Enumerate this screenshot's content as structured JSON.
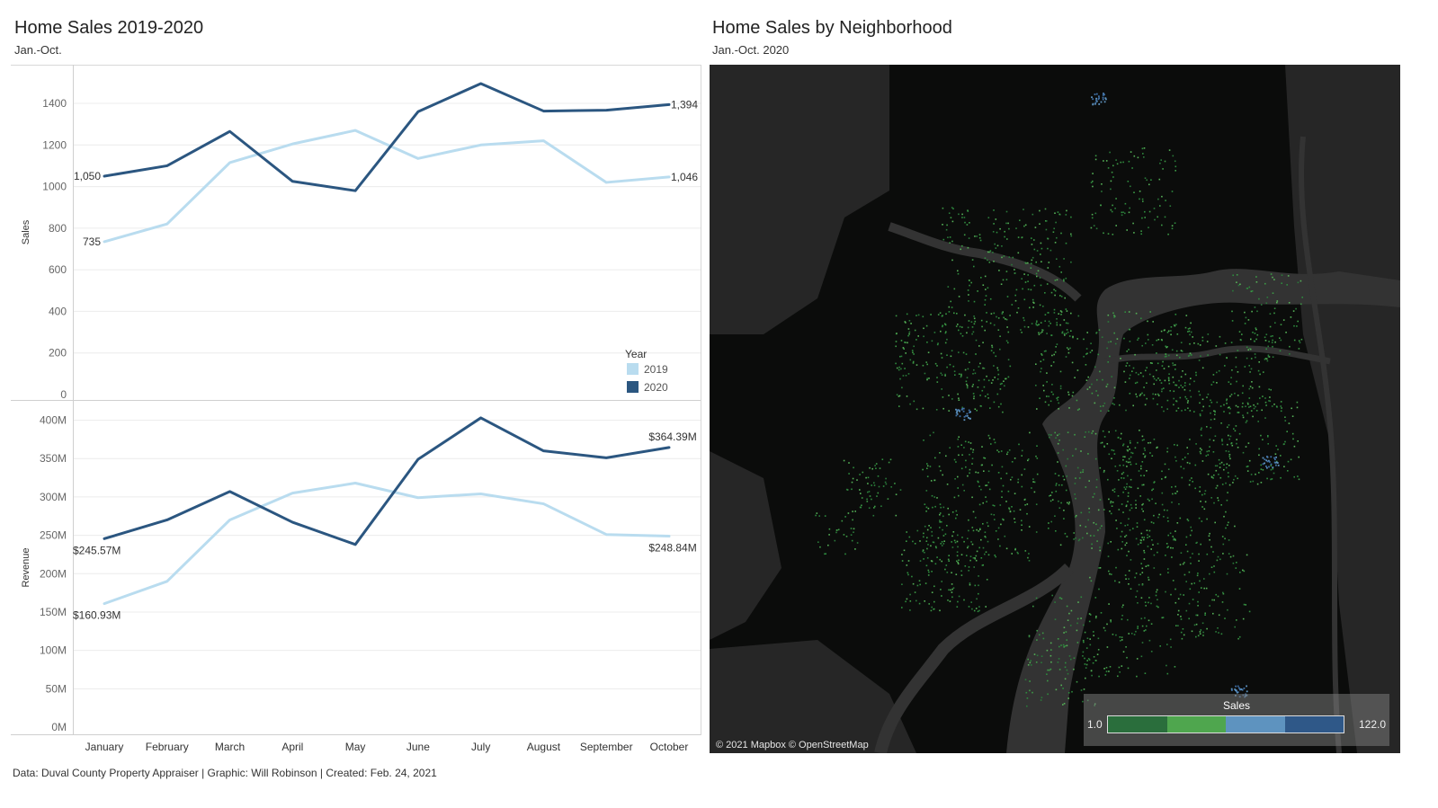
{
  "left": {
    "title": "Home Sales 2019-2020",
    "subtitle": "Jan.-Oct."
  },
  "right": {
    "title": "Home Sales by Neighborhood",
    "subtitle": "Jan.-Oct. 2020"
  },
  "footer": "Data: Duval County Property Appraiser  |  Graphic: Will Robinson  |  Created: Feb. 24, 2021",
  "colors": {
    "y2019": "#b9dcef",
    "y2020": "#2b5680",
    "map_bg": "#0b0c0b",
    "map_land": "#262626",
    "map_water": "#333333"
  },
  "chart_data": [
    {
      "type": "line",
      "ylabel": "Sales",
      "categories": [
        "January",
        "February",
        "March",
        "April",
        "May",
        "June",
        "July",
        "August",
        "September",
        "October"
      ],
      "ylim": [
        0,
        1600
      ],
      "yticks": [
        0,
        200,
        400,
        600,
        800,
        1000,
        1200,
        1400
      ],
      "ytick_labels": [
        "0",
        "200",
        "400",
        "600",
        "800",
        "1000",
        "1200",
        "1400"
      ],
      "grid": true,
      "legend": {
        "title": "Year",
        "placement": "bottom-right",
        "entries": [
          {
            "label": "2019",
            "color": "#b9dcef"
          },
          {
            "label": "2020",
            "color": "#2b5680"
          }
        ]
      },
      "series": [
        {
          "name": "2019",
          "color": "#b9dcef",
          "values": [
            735,
            820,
            1115,
            1205,
            1270,
            1135,
            1200,
            1220,
            1020,
            1046
          ]
        },
        {
          "name": "2020",
          "color": "#2b5680",
          "values": [
            1050,
            1100,
            1265,
            1025,
            980,
            1360,
            1495,
            1363,
            1367,
            1394
          ]
        }
      ],
      "data_labels": [
        {
          "series": "2020",
          "index": 0,
          "text": "1,050",
          "side": "left"
        },
        {
          "series": "2019",
          "index": 0,
          "text": "735",
          "side": "left"
        },
        {
          "series": "2020",
          "index": 9,
          "text": "1,394",
          "side": "right"
        },
        {
          "series": "2019",
          "index": 9,
          "text": "1,046",
          "side": "right"
        }
      ]
    },
    {
      "type": "line",
      "ylabel": "Revenue",
      "categories": [
        "January",
        "February",
        "March",
        "April",
        "May",
        "June",
        "July",
        "August",
        "September",
        "October"
      ],
      "ylim": [
        0,
        420
      ],
      "yticks": [
        0,
        50,
        100,
        150,
        200,
        250,
        300,
        350,
        400
      ],
      "ytick_labels": [
        "0M",
        "50M",
        "100M",
        "150M",
        "200M",
        "250M",
        "300M",
        "350M",
        "400M"
      ],
      "grid": true,
      "series": [
        {
          "name": "2019",
          "color": "#b9dcef",
          "values": [
            160.93,
            190,
            270,
            305,
            318,
            299,
            304,
            291,
            251,
            248.84
          ]
        },
        {
          "name": "2020",
          "color": "#2b5680",
          "values": [
            245.57,
            270,
            307,
            267,
            238,
            349,
            403,
            360,
            351,
            364.39
          ]
        }
      ],
      "data_labels": [
        {
          "series": "2020",
          "index": 0,
          "text": "$245.57M",
          "side": "below"
        },
        {
          "series": "2019",
          "index": 0,
          "text": "$160.93M",
          "side": "below"
        },
        {
          "series": "2020",
          "index": 9,
          "text": "$364.39M",
          "side": "above"
        },
        {
          "series": "2019",
          "index": 9,
          "text": "$248.84M",
          "side": "below"
        }
      ]
    }
  ],
  "map": {
    "attribution": "© 2021 Mapbox © OpenStreetMap",
    "legend": {
      "title": "Sales",
      "min": "1.0",
      "max": "122.0",
      "colors": [
        "#2a6e3c",
        "#4fa64e",
        "#5e93bf",
        "#2f5888"
      ]
    }
  }
}
